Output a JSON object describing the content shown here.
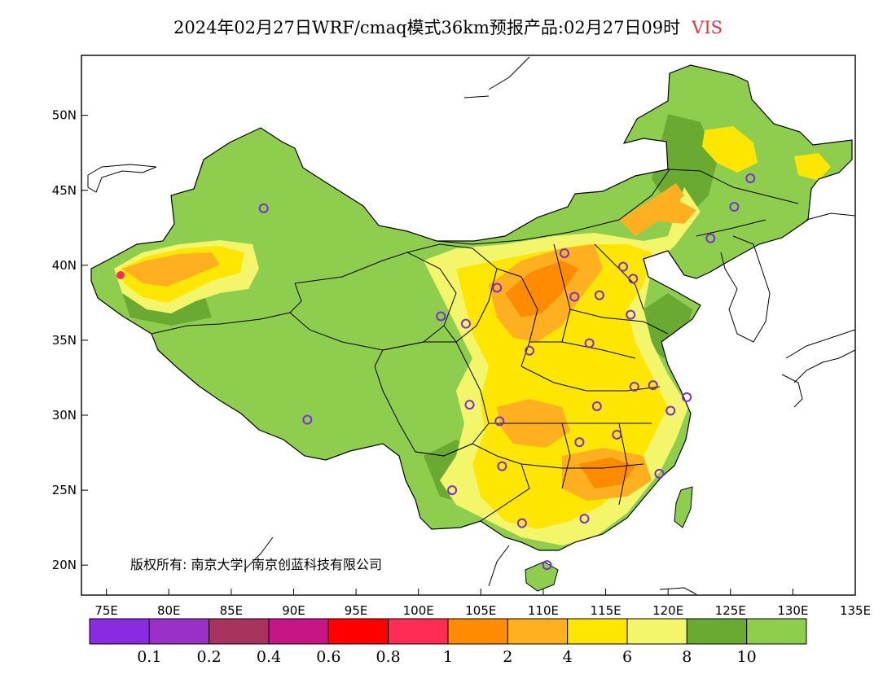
{
  "title": {
    "text": "2024年02月27日WRF/cmaq模式36km预报产品:02月27日09时",
    "variable": "VIS",
    "variable_color": "#e0333a"
  },
  "copyright": "版权所有: 南京大学| 南京创蓝科技有限公司",
  "axes": {
    "lon_range": [
      73,
      135
    ],
    "lat_range": [
      18,
      54
    ],
    "x_ticks": [
      {
        "lon": 75,
        "label": "75E"
      },
      {
        "lon": 80,
        "label": "80E"
      },
      {
        "lon": 85,
        "label": "85E"
      },
      {
        "lon": 90,
        "label": "90E"
      },
      {
        "lon": 95,
        "label": "95E"
      },
      {
        "lon": 100,
        "label": "100E"
      },
      {
        "lon": 105,
        "label": "105E"
      },
      {
        "lon": 110,
        "label": "110E"
      },
      {
        "lon": 115,
        "label": "115E"
      },
      {
        "lon": 120,
        "label": "120E"
      },
      {
        "lon": 125,
        "label": "125E"
      },
      {
        "lon": 130,
        "label": "130E"
      },
      {
        "lon": 135,
        "label": "135E"
      }
    ],
    "y_ticks": [
      {
        "lat": 20,
        "label": "20N"
      },
      {
        "lat": 25,
        "label": "25N"
      },
      {
        "lat": 30,
        "label": "30N"
      },
      {
        "lat": 35,
        "label": "35N"
      },
      {
        "lat": 40,
        "label": "40N"
      },
      {
        "lat": 45,
        "label": "45N"
      },
      {
        "lat": 50,
        "label": "50N"
      }
    ]
  },
  "colorbar": {
    "colors": [
      "#8a2be2",
      "#9b30c8",
      "#a8325e",
      "#c71585",
      "#ff0000",
      "#ff2d55",
      "#ff8c00",
      "#ffb020",
      "#ffe600",
      "#f3f56a",
      "#6aaa32",
      "#8fcd4f"
    ],
    "labels": [
      "0.1",
      "0.2",
      "0.4",
      "0.6",
      "0.8",
      "1",
      "2",
      "4",
      "6",
      "8",
      "10"
    ]
  },
  "map": {
    "colors": {
      "good": "#8fcd4f",
      "good_dark": "#6aaa32",
      "light": "#f3f56a",
      "yellow": "#ffe600",
      "orange_light": "#ffb020",
      "orange": "#ff8c00",
      "red": "#ff2d55",
      "station": "#7b2fd4",
      "land_outline": "#000000"
    },
    "stations": [
      {
        "lon": 87.6,
        "lat": 43.8
      },
      {
        "lon": 91.1,
        "lat": 29.7
      },
      {
        "lon": 101.8,
        "lat": 36.6
      },
      {
        "lon": 103.8,
        "lat": 36.1
      },
      {
        "lon": 106.3,
        "lat": 38.5
      },
      {
        "lon": 111.7,
        "lat": 40.8
      },
      {
        "lon": 112.5,
        "lat": 37.9
      },
      {
        "lon": 114.5,
        "lat": 38.0
      },
      {
        "lon": 116.4,
        "lat": 39.9
      },
      {
        "lon": 117.2,
        "lat": 39.1
      },
      {
        "lon": 117.0,
        "lat": 36.7
      },
      {
        "lon": 113.7,
        "lat": 34.8
      },
      {
        "lon": 108.9,
        "lat": 34.3
      },
      {
        "lon": 104.1,
        "lat": 30.7
      },
      {
        "lon": 106.5,
        "lat": 29.6
      },
      {
        "lon": 106.7,
        "lat": 26.6
      },
      {
        "lon": 102.7,
        "lat": 25.0
      },
      {
        "lon": 108.3,
        "lat": 22.8
      },
      {
        "lon": 113.3,
        "lat": 23.1
      },
      {
        "lon": 110.3,
        "lat": 20.0
      },
      {
        "lon": 112.9,
        "lat": 28.2
      },
      {
        "lon": 114.3,
        "lat": 30.6
      },
      {
        "lon": 115.9,
        "lat": 28.7
      },
      {
        "lon": 117.3,
        "lat": 31.9
      },
      {
        "lon": 118.8,
        "lat": 32.0
      },
      {
        "lon": 121.5,
        "lat": 31.2
      },
      {
        "lon": 120.2,
        "lat": 30.3
      },
      {
        "lon": 119.3,
        "lat": 26.1
      },
      {
        "lon": 123.4,
        "lat": 41.8
      },
      {
        "lon": 125.3,
        "lat": 43.9
      },
      {
        "lon": 126.6,
        "lat": 45.8
      }
    ]
  }
}
